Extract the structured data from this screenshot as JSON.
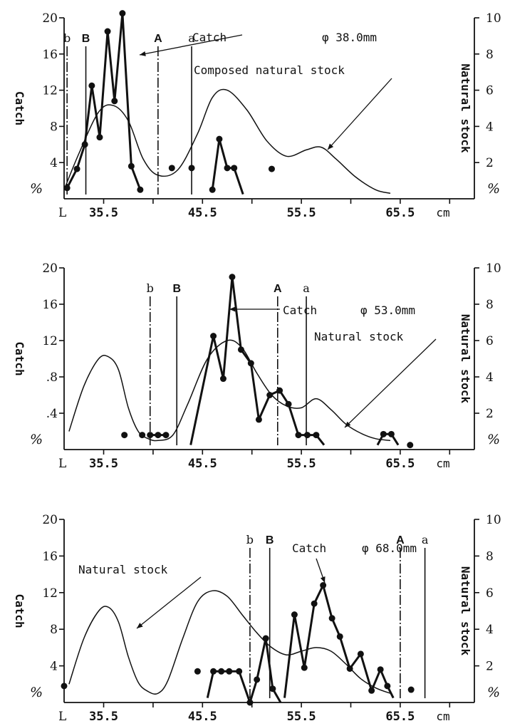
{
  "chart_data": [
    {
      "type": "line",
      "mesh_label": "φ 38.0mm",
      "left_axis": {
        "label": "Catch",
        "unit": "%",
        "ticks": [
          4,
          8,
          12,
          16,
          20
        ],
        "range": [
          0,
          20
        ]
      },
      "right_axis": {
        "label": "Natural stock",
        "unit": "%",
        "ticks": [
          2,
          4,
          6,
          8,
          10
        ],
        "range": [
          0,
          10
        ]
      },
      "x_axis": {
        "first_label": "L",
        "ticks": [
          "35.5",
          "45.5",
          "55.5",
          "65.5"
        ],
        "unit": "cm",
        "range": [
          31.5,
          73
        ]
      },
      "annotations": [
        {
          "text": "Catch",
          "target": "Catch"
        },
        {
          "text": "Composed natural stock",
          "target": "Natural stock"
        }
      ],
      "markers": [
        {
          "text": "b",
          "x": 31.8
        },
        {
          "text": "B",
          "x": 33.7
        },
        {
          "text": "A",
          "x": 41.0
        },
        {
          "text": "a",
          "x": 44.4
        }
      ],
      "series": [
        {
          "name": "Catch",
          "segments": [
            [
              [
                31.8,
                1.2
              ],
              [
                32.8,
                3.3
              ],
              [
                33.6,
                6.0
              ],
              [
                34.3,
                12.5
              ],
              [
                35.1,
                6.8
              ],
              [
                35.9,
                18.5
              ],
              [
                36.6,
                10.8
              ],
              [
                37.4,
                20.5
              ],
              [
                38.3,
                3.6
              ],
              [
                39.2,
                1.0
              ]
            ],
            [
              [
                46.5,
                1.0
              ],
              [
                47.2,
                6.6
              ],
              [
                48.0,
                3.4
              ],
              [
                48.7,
                3.4
              ],
              [
                49.6,
                0.5
              ]
            ]
          ]
        },
        {
          "name": "Catch (isolated points)",
          "points": [
            [
              42.4,
              3.4
            ],
            [
              44.4,
              3.4
            ],
            [
              52.5,
              3.3
            ]
          ]
        },
        {
          "name": "Natural stock",
          "x": [
            31.5,
            33,
            35,
            36.5,
            38,
            39.5,
            41,
            43,
            45,
            46.5,
            48,
            50,
            52,
            54,
            56,
            57.5,
            59,
            61,
            63,
            64.5
          ],
          "values": [
            0.5,
            2.5,
            4.8,
            5.15,
            4.3,
            2.2,
            1.3,
            1.6,
            3.6,
            5.6,
            6.0,
            4.9,
            3.2,
            2.35,
            2.7,
            2.85,
            2.2,
            1.2,
            0.5,
            0.3
          ]
        }
      ]
    },
    {
      "type": "line",
      "mesh_label": "φ 53.0mm",
      "left_axis": {
        "label": "Catch",
        "unit": "%",
        "ticks": [
          ".4",
          ".8",
          "12",
          "16",
          "20"
        ],
        "range": [
          0,
          20
        ]
      },
      "right_axis": {
        "label": "Natural stock",
        "unit": "%",
        "ticks": [
          2,
          4,
          6,
          8,
          10
        ],
        "range": [
          0,
          10
        ]
      },
      "x_axis": {
        "first_label": "L",
        "ticks": [
          "35.5",
          "45.5",
          "55.5",
          "65.5"
        ],
        "unit": "cm",
        "range": [
          31.5,
          73
        ]
      },
      "annotations": [
        {
          "text": "Catch",
          "target": "Catch"
        },
        {
          "text": "Natural stock",
          "target": "Natural stock"
        }
      ],
      "markers": [
        {
          "text": "b",
          "x": 40.2
        },
        {
          "text": "B",
          "x": 42.9
        },
        {
          "text": "A",
          "x": 53.1
        },
        {
          "text": "a",
          "x": 56.0
        }
      ],
      "series": [
        {
          "name": "Catch",
          "segments": [
            [
              [
                40.2,
                1.6
              ],
              [
                41.0,
                1.6
              ],
              [
                41.8,
                1.6
              ]
            ],
            [
              [
                44.3,
                0.5
              ],
              [
                46.6,
                12.5
              ],
              [
                47.6,
                7.8
              ],
              [
                48.5,
                19.0
              ],
              [
                49.4,
                11.0
              ],
              [
                50.4,
                9.5
              ],
              [
                51.2,
                3.3
              ],
              [
                52.3,
                6.0
              ],
              [
                53.3,
                6.5
              ],
              [
                54.2,
                5.0
              ],
              [
                55.2,
                1.6
              ],
              [
                56.1,
                1.6
              ],
              [
                57.0,
                1.6
              ],
              [
                57.8,
                0.5
              ]
            ],
            [
              [
                63.2,
                0.5
              ],
              [
                63.8,
                1.7
              ],
              [
                64.6,
                1.7
              ],
              [
                65.3,
                0.5
              ]
            ]
          ]
        },
        {
          "name": "Catch (isolated points)",
          "points": [
            [
              37.6,
              1.6
            ],
            [
              39.4,
              1.6
            ],
            [
              66.5,
              0.5
            ]
          ]
        },
        {
          "name": "Natural stock",
          "x": [
            32,
            33.5,
            35,
            36,
            37,
            38,
            39,
            40,
            41,
            42.5,
            44,
            46,
            48,
            49.5,
            51,
            52.5,
            54,
            55.5,
            57,
            58.5,
            60,
            61.5,
            63,
            64.5
          ],
          "values": [
            1.0,
            3.5,
            5.0,
            5.1,
            4.4,
            2.3,
            1.0,
            0.6,
            0.5,
            0.8,
            2.5,
            5.0,
            6.0,
            5.6,
            4.2,
            3.0,
            2.4,
            2.3,
            2.8,
            2.2,
            1.4,
            0.9,
            0.6,
            0.5
          ]
        }
      ]
    },
    {
      "type": "line",
      "mesh_label": "φ 68.0mm",
      "left_axis": {
        "label": "Catch",
        "unit": "%",
        "ticks": [
          4,
          8,
          12,
          16,
          20
        ],
        "range": [
          0,
          20
        ]
      },
      "right_axis": {
        "label": "Natural stock",
        "unit": "%",
        "ticks": [
          2,
          4,
          6,
          8,
          10
        ],
        "range": [
          0,
          10
        ]
      },
      "x_axis": {
        "first_label": "L",
        "ticks": [
          "35.5",
          "45.5",
          "55.5",
          "65.5"
        ],
        "unit": "cm",
        "range": [
          31.5,
          73
        ]
      },
      "annotations": [
        {
          "text": "Catch",
          "target": "Catch"
        },
        {
          "text": "Natural stock",
          "target": "Natural stock"
        }
      ],
      "markers": [
        {
          "text": "b",
          "x": 50.3
        },
        {
          "text": "B",
          "x": 52.3
        },
        {
          "text": "A",
          "x": 65.5
        },
        {
          "text": "a",
          "x": 68.0
        }
      ],
      "series": [
        {
          "name": "Catch",
          "segments": [
            [
              [
                46.0,
                0.5
              ],
              [
                46.6,
                3.4
              ],
              [
                47.4,
                3.4
              ],
              [
                48.2,
                3.4
              ],
              [
                49.2,
                3.4
              ],
              [
                50.3,
                0.0
              ],
              [
                51.0,
                2.5
              ],
              [
                51.9,
                7.0
              ],
              [
                52.6,
                1.5
              ],
              [
                53.4,
                0.0
              ]
            ],
            [
              [
                53.8,
                0.5
              ],
              [
                54.8,
                9.6
              ],
              [
                55.8,
                3.8
              ],
              [
                56.8,
                10.8
              ],
              [
                57.7,
                12.8
              ],
              [
                58.6,
                9.2
              ],
              [
                59.4,
                7.2
              ],
              [
                60.4,
                3.7
              ],
              [
                61.5,
                5.3
              ],
              [
                62.6,
                1.3
              ],
              [
                63.5,
                3.6
              ],
              [
                64.2,
                1.8
              ],
              [
                64.8,
                0.5
              ]
            ]
          ]
        },
        {
          "name": "Catch (isolated points)",
          "points": [
            [
              31.5,
              1.8
            ],
            [
              45.0,
              3.4
            ],
            [
              66.6,
              1.4
            ]
          ]
        },
        {
          "name": "Natural stock",
          "x": [
            32,
            33.5,
            35,
            36,
            37,
            38,
            39,
            40,
            41,
            42,
            43.5,
            45,
            46.5,
            48,
            49.5,
            51,
            52.5,
            54,
            55.5,
            57,
            58.5,
            60,
            61.5,
            63,
            64.5
          ],
          "values": [
            1.0,
            3.5,
            5.0,
            5.2,
            4.4,
            2.5,
            1.1,
            0.6,
            0.5,
            1.2,
            3.5,
            5.5,
            6.1,
            5.8,
            4.8,
            3.8,
            3.0,
            2.6,
            2.8,
            3.0,
            2.8,
            2.1,
            1.3,
            0.8,
            0.5
          ]
        }
      ]
    }
  ]
}
